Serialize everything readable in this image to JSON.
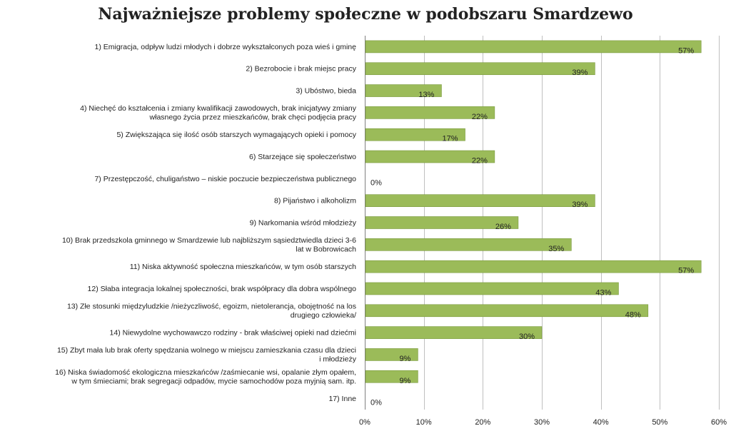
{
  "chart_data": {
    "type": "bar",
    "orientation": "horizontal",
    "title": "Najważniejsze problemy społeczne w podobszaru Smardzewo",
    "categories": [
      [
        "1) Emigracja,  odpływ ludzi młodych i dobrze wykształconych poza wieś i gminę"
      ],
      [
        "2) Bezrobocie  i brak miejsc pracy"
      ],
      [
        "3) Ubóstwo,  bieda"
      ],
      [
        "4) Niechęć do kształcenia i zmiany kwalifikacji zawodowych, brak inicjatywy zmiany",
        "własnego życia przez mieszkańców, brak chęci podjęcia pracy"
      ],
      [
        "5) Zwiększająca  się ilość osób starszych wymagających opieki i pomocy"
      ],
      [
        "6) Starzejące  się społeczeństwo"
      ],
      [
        "7) Przestępczość,  chuligaństwo – niskie poczucie bezpieczeństwa  publicznego"
      ],
      [
        "8) Pijaństwo  i alkoholizm"
      ],
      [
        "9) Narkomania  wśród młodzieży"
      ],
      [
        "10) Brak przedszkola  gminnego w Smardzewie lub najbliższym sąsiedztwiedla  dzieci 3-6",
        "lat w Bobrowicach"
      ],
      [
        "11) Niska aktywność społeczna mieszkańców, w tym osób starszych"
      ],
      [
        "12) Słaba integracja  lokalnej społeczności, brak współpracy  dla dobra wspólnego"
      ],
      [
        "13) Złe stosunki międzyludzkie  /nieżyczliwość, egoizm, nietolerancja,  obojętność na los",
        "drugiego  człowieka/"
      ],
      [
        "14) Niewydolne wychowawczo rodziny  - brak właściwej opieki nad dziećmi"
      ],
      [
        "15) Zbyt mała lub brak oferty spędzania  wolnego  w miejscu zamieszkania czasu dla dzieci",
        "i młodzieży"
      ],
      [
        "16) Niska świadomość ekologiczna mieszkańców /zaśmiecanie wsi, opalanie złym opałem,",
        "w tym śmieciami; brak segregacji  odpadów,  mycie samochodów poza myjnią sam.  itp."
      ],
      [
        "17) Inne"
      ]
    ],
    "values": [
      57,
      39,
      13,
      22,
      17,
      22,
      0,
      39,
      26,
      35,
      57,
      43,
      48,
      30,
      9,
      9,
      0
    ],
    "data_labels": [
      "57%",
      "39%",
      "13%",
      "22%",
      "17%",
      "22%",
      "0%",
      "39%",
      "26%",
      "35%",
      "57%",
      "43%",
      "48%",
      "30%",
      "9%",
      "9%",
      "0%"
    ],
    "xlim": [
      0,
      60
    ],
    "x_ticks": [
      0,
      10,
      20,
      30,
      40,
      50,
      60
    ],
    "x_tick_labels": [
      "0%",
      "10%",
      "20%",
      "30%",
      "40%",
      "50%",
      "60%"
    ],
    "grid": "vertical",
    "legend": "none",
    "colors": {
      "bar": "#9bbb59",
      "bar_edge": "#7a9a3e",
      "grid": "#bfbfbf",
      "axis": "#7f7f7f",
      "text": "#222222"
    }
  }
}
